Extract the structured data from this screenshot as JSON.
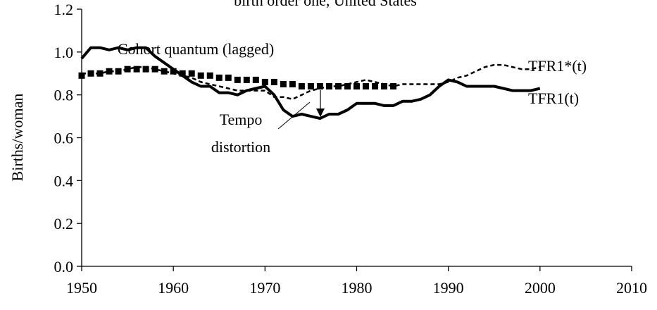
{
  "chart_data": {
    "type": "line",
    "title": "birth order one, United States",
    "ylabel": "Births/woman",
    "x": [
      1950,
      1951,
      1952,
      1953,
      1954,
      1955,
      1956,
      1957,
      1958,
      1959,
      1960,
      1961,
      1962,
      1963,
      1964,
      1965,
      1966,
      1967,
      1968,
      1969,
      1970,
      1971,
      1972,
      1973,
      1974,
      1975,
      1976,
      1977,
      1978,
      1979,
      1980,
      1981,
      1982,
      1983,
      1984,
      1985,
      1986,
      1987,
      1988,
      1989,
      1990,
      1991,
      1992,
      1993,
      1994,
      1995,
      1996,
      1997,
      1998,
      1999,
      2000
    ],
    "series": [
      {
        "name": "TFR1(t)",
        "color": "#000000",
        "style": "solid",
        "values": [
          0.97,
          1.02,
          1.02,
          1.01,
          1.02,
          1.01,
          1.02,
          1.02,
          0.98,
          0.95,
          0.92,
          0.89,
          0.86,
          0.84,
          0.84,
          0.81,
          0.81,
          0.8,
          0.82,
          0.83,
          0.84,
          0.8,
          0.73,
          0.7,
          0.71,
          0.7,
          0.69,
          0.71,
          0.71,
          0.73,
          0.76,
          0.76,
          0.76,
          0.75,
          0.75,
          0.77,
          0.77,
          0.78,
          0.8,
          0.84,
          0.87,
          0.86,
          0.84,
          0.84,
          0.84,
          0.84,
          0.83,
          0.82,
          0.82,
          0.82,
          0.83
        ]
      },
      {
        "name": "TFR1*(t)",
        "color": "#000000",
        "style": "dashed",
        "values": [
          0.9,
          0.9,
          0.9,
          0.91,
          0.91,
          0.92,
          0.93,
          0.93,
          0.92,
          0.91,
          0.9,
          0.89,
          0.88,
          0.86,
          0.85,
          0.84,
          0.83,
          0.82,
          0.82,
          0.82,
          0.82,
          0.79,
          0.79,
          0.78,
          0.8,
          0.82,
          0.83,
          0.84,
          0.84,
          0.85,
          0.86,
          0.87,
          0.86,
          0.85,
          0.84,
          0.85,
          0.85,
          0.85,
          0.85,
          0.85,
          0.86,
          0.88,
          0.89,
          0.91,
          0.93,
          0.94,
          0.94,
          0.93,
          0.92,
          0.92,
          0.93
        ]
      },
      {
        "name": "Cohort quantum (lagged)",
        "color": "#000000",
        "style": "markers",
        "values": [
          0.89,
          0.9,
          0.9,
          0.91,
          0.91,
          0.92,
          0.92,
          0.92,
          0.92,
          0.91,
          0.91,
          0.9,
          0.9,
          0.89,
          0.89,
          0.88,
          0.88,
          0.87,
          0.87,
          0.87,
          0.86,
          0.86,
          0.85,
          0.85,
          0.84,
          0.84,
          0.84,
          0.84,
          0.84,
          0.84,
          0.84,
          0.84,
          0.84,
          0.84,
          0.84,
          null,
          null,
          null,
          null,
          null,
          null,
          null,
          null,
          null,
          null,
          null,
          null,
          null,
          null,
          null,
          null
        ]
      }
    ],
    "annotations": [
      "Tempo",
      "distortion"
    ],
    "xlim": [
      1950,
      2010
    ],
    "xticks": [
      1950,
      1960,
      1970,
      1980,
      1990,
      2000,
      2010
    ],
    "ylim": [
      0,
      1.2
    ],
    "yticks": [
      {
        "value": 0,
        "label": "0.0"
      },
      0.2,
      0.4,
      0.6,
      0.8,
      {
        "value": 1,
        "label": "1.0"
      },
      1.2
    ],
    "grid": false
  }
}
